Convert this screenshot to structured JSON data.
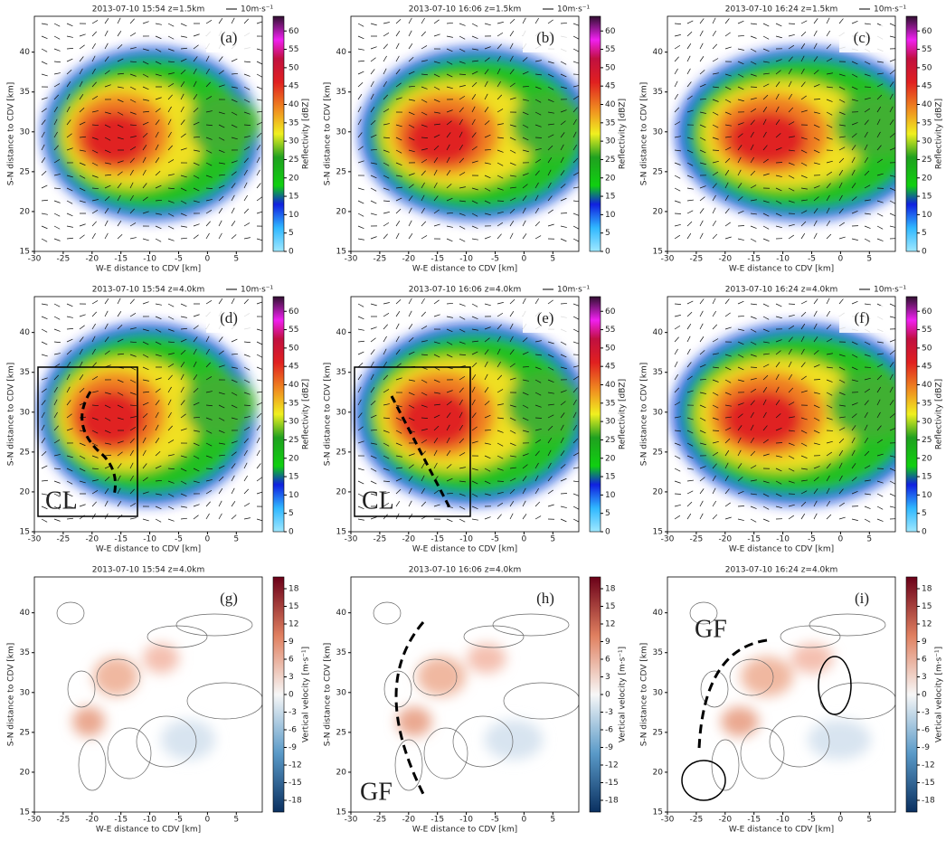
{
  "axes": {
    "xlabel": "W-E distance to CDV [km]",
    "ylabel": "S-N distance to CDV [km]",
    "xlim": [
      -30,
      9.5
    ],
    "ylim": [
      15,
      44.5
    ],
    "xticks": [
      -30,
      -25,
      -20,
      -15,
      -10,
      -5,
      0,
      5
    ],
    "yticks": [
      15,
      20,
      25,
      30,
      35,
      40
    ]
  },
  "rows": [
    {
      "arrow_label": "10m·s⁻¹",
      "colorbar": {
        "label": "Reflectivity [dBZ]",
        "lim": [
          0,
          64
        ],
        "ticks": [
          0,
          5,
          10,
          15,
          20,
          25,
          30,
          35,
          40,
          45,
          50,
          55,
          60
        ]
      },
      "panels": [
        {
          "title": "2013-07-10 15:54 z=1.5km",
          "label": "(a)"
        },
        {
          "title": "2013-07-10 16:06 z=1.5km",
          "label": "(b)"
        },
        {
          "title": "2013-07-10 16:24 z=1.5km",
          "label": "(c)"
        }
      ]
    },
    {
      "arrow_label": "10m·s⁻¹",
      "colorbar": {
        "label": "Reflectivity [dBZ]",
        "lim": [
          0,
          64
        ],
        "ticks": [
          0,
          5,
          10,
          15,
          20,
          25,
          30,
          35,
          40,
          45,
          50,
          55,
          60
        ]
      },
      "panels": [
        {
          "title": "2013-07-10 15:54 z=4.0km",
          "label": "(d)",
          "annotation": "CL"
        },
        {
          "title": "2013-07-10 16:06 z=4.0km",
          "label": "(e)",
          "annotation": "CL"
        },
        {
          "title": "2013-07-10 16:24 z=4.0km",
          "label": "(f)"
        }
      ]
    },
    {
      "colorbar": {
        "label": "Vertical velocity [m·s⁻¹]",
        "lim": [
          -20,
          20
        ],
        "ticks": [
          -18,
          -15,
          -12,
          -9,
          -6,
          -3,
          0,
          3,
          6,
          9,
          12,
          15,
          18
        ]
      },
      "panels": [
        {
          "title": "2013-07-10 15:54 z=4.0km",
          "label": "(g)"
        },
        {
          "title": "2013-07-10 16:06 z=4.0km",
          "label": "(h)",
          "annotation": "GF"
        },
        {
          "title": "2013-07-10 16:24 z=4.0km",
          "label": "(i)",
          "annotation": "GF"
        }
      ]
    }
  ]
}
